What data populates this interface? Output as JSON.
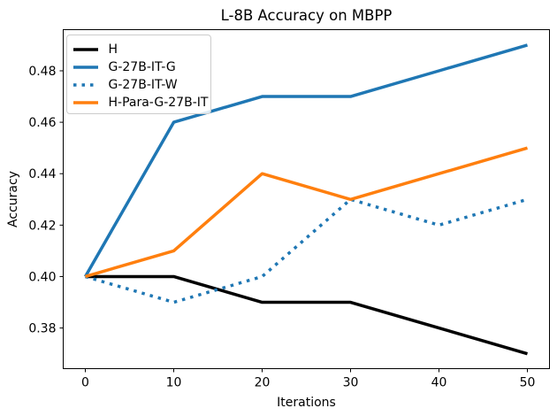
{
  "chart_data": {
    "type": "line",
    "title": "L-8B Accuracy on MBPP",
    "xlabel": "Iterations",
    "ylabel": "Accuracy",
    "x": [
      0,
      10,
      20,
      30,
      40,
      50
    ],
    "xticks": [
      0,
      10,
      20,
      30,
      40,
      50
    ],
    "xtick_labels": [
      "0",
      "10",
      "20",
      "30",
      "40",
      "50"
    ],
    "yticks": [
      0.38,
      0.4,
      0.42,
      0.44,
      0.46,
      0.48
    ],
    "ytick_labels": [
      "0.38",
      "0.40",
      "0.42",
      "0.44",
      "0.46",
      "0.48"
    ],
    "xlim": [
      -2.5,
      52.5
    ],
    "ylim": [
      0.3642,
      0.496
    ],
    "grid": false,
    "legend_position": "upper-left",
    "series": [
      {
        "name": "H",
        "color": "#000000",
        "line_style": "solid",
        "values": [
          0.4,
          0.4,
          0.39,
          0.39,
          0.38,
          0.37
        ]
      },
      {
        "name": "G-27B-IT-G",
        "color": "#1f77b4",
        "line_style": "solid",
        "values": [
          0.4,
          0.46,
          0.47,
          0.47,
          0.48,
          0.49
        ]
      },
      {
        "name": "G-27B-IT-W",
        "color": "#1f77b4",
        "line_style": "dotted",
        "values": [
          0.4,
          0.39,
          0.4,
          0.43,
          0.42,
          0.43
        ]
      },
      {
        "name": "H-Para-G-27B-IT",
        "color": "#ff7f0e",
        "line_style": "solid",
        "values": [
          0.4,
          0.41,
          0.44,
          0.43,
          0.44,
          0.45
        ]
      }
    ],
    "colors": {
      "background": "#ffffff",
      "spine": "#000000",
      "legend_border": "#cccccc"
    }
  }
}
